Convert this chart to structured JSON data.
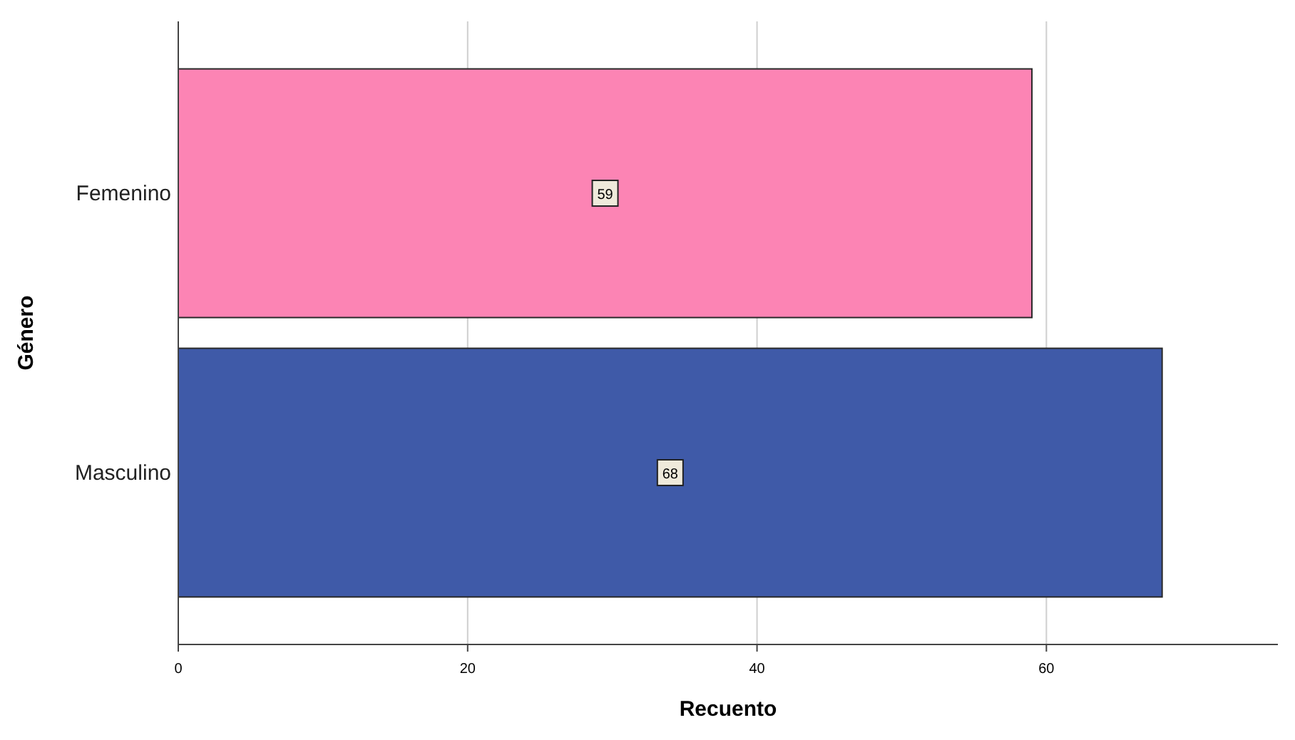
{
  "chart_data": {
    "type": "bar",
    "orientation": "horizontal",
    "categories": [
      "Femenino",
      "Masculino"
    ],
    "values": [
      59,
      68
    ],
    "colors": [
      "#fc84b4",
      "#3f5aa8"
    ],
    "xlabel": "Recuento",
    "ylabel": "Género",
    "xlim": [
      0,
      76
    ],
    "xticks": [
      0,
      20,
      40,
      60
    ],
    "grid": "x",
    "data_labels": true
  }
}
